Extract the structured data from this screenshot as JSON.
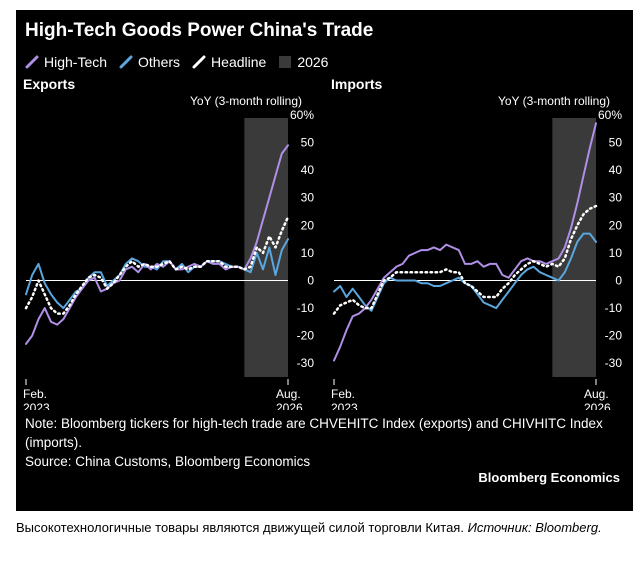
{
  "title": "High-Tech Goods Power China's Trade",
  "legend": [
    {
      "label": "High-Tech",
      "color": "#b08fe6",
      "style": "solid"
    },
    {
      "label": "Others",
      "color": "#5aa6df",
      "style": "solid"
    },
    {
      "label": "Headline",
      "color": "#ffffff",
      "style": "dotted"
    },
    {
      "label": "2026",
      "color": "#3a3a3a",
      "style": "box"
    }
  ],
  "note": "Note: Bloomberg tickers for high-tech trade are CHVEHITC Index (exports) and CHIVHITC Index (imports).",
  "source": "Source: China Customs, Bloomberg Economics",
  "brand": "Bloomberg Economics",
  "caption": {
    "text": "Высокотехнологичные товары являются движущей силой торговли Китая.",
    "source_label": "Источник:",
    "source_name": "Bloomberg."
  },
  "chart_data": [
    {
      "type": "line",
      "title": "Exports",
      "ylabel": "YoY (3-month rolling)",
      "ylim": [
        -35,
        60
      ],
      "yticks": [
        60,
        50,
        40,
        30,
        20,
        10,
        0,
        -10,
        -20,
        -30
      ],
      "ytick_labels": [
        "60%",
        "50",
        "40",
        "30",
        "20",
        "10",
        "0",
        "-10",
        "-20",
        "-30"
      ],
      "x_start_label": [
        "Feb.",
        "2023"
      ],
      "x_end_label": [
        "Aug.",
        "2026"
      ],
      "x": [
        "2023-02",
        "2023-03",
        "2023-04",
        "2023-05",
        "2023-06",
        "2023-07",
        "2023-08",
        "2023-09",
        "2023-10",
        "2023-11",
        "2023-12",
        "2024-01",
        "2024-02",
        "2024-03",
        "2024-04",
        "2024-05",
        "2024-06",
        "2024-07",
        "2024-08",
        "2024-09",
        "2024-10",
        "2024-11",
        "2024-12",
        "2025-01",
        "2025-02",
        "2025-03",
        "2025-04",
        "2025-05",
        "2025-06",
        "2025-07",
        "2025-08",
        "2025-09",
        "2025-10",
        "2025-11",
        "2025-12",
        "2026-01",
        "2026-02",
        "2026-03",
        "2026-04",
        "2026-05",
        "2026-06",
        "2026-07",
        "2026-08"
      ],
      "shade": {
        "start": "2026-01",
        "end": "2026-08",
        "label": "2026"
      },
      "series": [
        {
          "name": "High-Tech",
          "values": [
            -23,
            -20,
            -14,
            -10,
            -15,
            -16,
            -14,
            -10,
            -6,
            -3,
            0,
            1,
            -4,
            -3,
            -1,
            0,
            4,
            5,
            3,
            6,
            4,
            6,
            5,
            7,
            4,
            4,
            5,
            6,
            5,
            7,
            6,
            6,
            4,
            5,
            5,
            4,
            8,
            14,
            22,
            30,
            38,
            46,
            49
          ]
        },
        {
          "name": "Others",
          "values": [
            -5,
            2,
            6,
            -1,
            -5,
            -8,
            -10,
            -7,
            -4,
            -3,
            1,
            3,
            3,
            -2,
            0,
            2,
            6,
            8,
            7,
            5,
            5,
            4,
            7,
            7,
            4,
            6,
            3,
            5,
            5,
            7,
            7,
            7,
            6,
            5,
            5,
            4,
            3,
            10,
            4,
            12,
            2,
            11,
            15
          ]
        },
        {
          "name": "Headline",
          "values": [
            -10,
            -6,
            0,
            -5,
            -10,
            -12,
            -12,
            -9,
            -5,
            -2,
            1,
            2,
            1,
            -3,
            -1,
            2,
            5,
            7,
            5,
            6,
            5,
            5,
            6,
            7,
            4,
            5,
            4,
            5,
            5,
            7,
            7,
            7,
            5,
            5,
            5,
            4,
            5,
            12,
            10,
            16,
            12,
            18,
            23
          ]
        }
      ]
    },
    {
      "type": "line",
      "title": "Imports",
      "ylabel": "YoY (3-month rolling)",
      "ylim": [
        -35,
        60
      ],
      "yticks": [
        60,
        50,
        40,
        30,
        20,
        10,
        0,
        -10,
        -20,
        -30
      ],
      "ytick_labels": [
        "60%",
        "50",
        "40",
        "30",
        "20",
        "10",
        "0",
        "-10",
        "-20",
        "-30"
      ],
      "x_start_label": [
        "Feb.",
        "2023"
      ],
      "x_end_label": [
        "Aug.",
        "2026"
      ],
      "x": [
        "2023-02",
        "2023-03",
        "2023-04",
        "2023-05",
        "2023-06",
        "2023-07",
        "2023-08",
        "2023-09",
        "2023-10",
        "2023-11",
        "2023-12",
        "2024-01",
        "2024-02",
        "2024-03",
        "2024-04",
        "2024-05",
        "2024-06",
        "2024-07",
        "2024-08",
        "2024-09",
        "2024-10",
        "2024-11",
        "2024-12",
        "2025-01",
        "2025-02",
        "2025-03",
        "2025-04",
        "2025-05",
        "2025-06",
        "2025-07",
        "2025-08",
        "2025-09",
        "2025-10",
        "2025-11",
        "2025-12",
        "2026-01",
        "2026-02",
        "2026-03",
        "2026-04",
        "2026-05",
        "2026-06",
        "2026-07",
        "2026-08"
      ],
      "shade": {
        "start": "2026-01",
        "end": "2026-08",
        "label": "2026"
      },
      "series": [
        {
          "name": "High-Tech",
          "values": [
            -29,
            -24,
            -18,
            -13,
            -12,
            -10,
            -7,
            -3,
            1,
            3,
            5,
            6,
            9,
            10,
            11,
            11,
            12,
            11,
            13,
            12,
            11,
            6,
            6,
            7,
            5,
            6,
            6,
            2,
            1,
            4,
            7,
            8,
            7,
            7,
            6,
            7,
            8,
            12,
            19,
            28,
            38,
            48,
            57
          ]
        },
        {
          "name": "Others",
          "values": [
            -4,
            -2,
            -6,
            -3,
            -6,
            -9,
            -11,
            -6,
            -1,
            1,
            0,
            0,
            0,
            0,
            -1,
            -1,
            -2,
            -2,
            -1,
            0,
            1,
            -1,
            -2,
            -5,
            -8,
            -9,
            -10,
            -7,
            -4,
            -1,
            2,
            4,
            5,
            3,
            2,
            1,
            0,
            3,
            8,
            14,
            17,
            17,
            14
          ]
        },
        {
          "name": "Headline",
          "values": [
            -12,
            -9,
            -8,
            -7,
            -9,
            -10,
            -10,
            -5,
            0,
            1,
            3,
            3,
            3,
            3,
            3,
            3,
            3,
            3,
            4,
            3,
            3,
            -1,
            -2,
            -4,
            -6,
            -6,
            -6,
            -3,
            -1,
            2,
            4,
            6,
            7,
            6,
            5,
            6,
            5,
            8,
            15,
            20,
            24,
            26,
            27
          ]
        }
      ]
    }
  ]
}
